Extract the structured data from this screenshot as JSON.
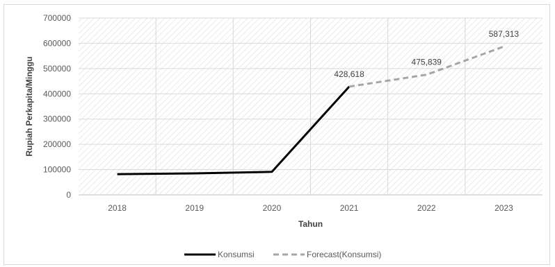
{
  "chart_data": {
    "type": "line",
    "x": [
      "2018",
      "2019",
      "2020",
      "2021",
      "2022",
      "2023"
    ],
    "series": [
      {
        "name": "Konsumsi",
        "color": "#000000",
        "style": "solid",
        "x": [
          "2018",
          "2019",
          "2020",
          "2021"
        ],
        "values": [
          82000,
          85000,
          91000,
          428618
        ]
      },
      {
        "name": "Forecast(Konsumsi)",
        "color": "#a6a6a6",
        "style": "dashed",
        "x": [
          "2021",
          "2022",
          "2023"
        ],
        "values": [
          428618,
          475839,
          587313
        ],
        "data_labels": [
          "428,618",
          "475,839",
          "587,313"
        ]
      }
    ],
    "xlabel": "Tahun",
    "ylabel": "Rupiah Perkapita/Minggu",
    "ylim": [
      0,
      700000
    ],
    "yticks": [
      "0",
      "100000",
      "200000",
      "300000",
      "400000",
      "500000",
      "600000",
      "700000"
    ],
    "grid": true,
    "legend_position": "bottom",
    "plot_background": "hatched"
  }
}
